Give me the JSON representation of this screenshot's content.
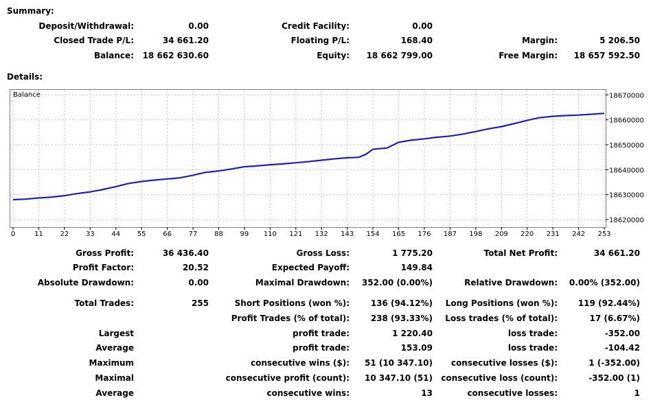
{
  "summary": {
    "title": "Summary:",
    "rows": [
      [
        {
          "label": "Deposit/Withdrawal:",
          "value": "0.00"
        },
        {
          "label": "Credit Facility:",
          "value": "0.00"
        },
        {
          "label": "",
          "value": ""
        }
      ],
      [
        {
          "label": "Closed Trade P/L:",
          "value": "34 661.20"
        },
        {
          "label": "Floating P/L:",
          "value": "168.40"
        },
        {
          "label": "Margin:",
          "value": "5 206.50"
        }
      ],
      [
        {
          "label": "Balance:",
          "value": "18 662 630.60"
        },
        {
          "label": "Equity:",
          "value": "18 662 799.00"
        },
        {
          "label": "Free Margin:",
          "value": "18 657 592.50"
        }
      ]
    ]
  },
  "details": {
    "title": "Details:"
  },
  "chart_data": {
    "type": "line",
    "title": "Balance",
    "xlabel": "",
    "ylabel": "",
    "xlim": [
      0,
      253
    ],
    "ylim": [
      18617000,
      18672000
    ],
    "x_ticks": [
      0,
      11,
      22,
      33,
      44,
      55,
      66,
      77,
      88,
      99,
      110,
      121,
      132,
      143,
      154,
      165,
      176,
      187,
      198,
      209,
      220,
      231,
      242,
      253
    ],
    "y_ticks": [
      18620000,
      18630000,
      18640000,
      18650000,
      18660000,
      18670000
    ],
    "grid": true,
    "line_color": "#1f1fb4",
    "series": [
      {
        "name": "Balance",
        "x": [
          0,
          5,
          11,
          16,
          22,
          27,
          33,
          38,
          44,
          49,
          55,
          60,
          66,
          71,
          77,
          82,
          88,
          93,
          99,
          104,
          110,
          115,
          121,
          126,
          132,
          137,
          143,
          148,
          151,
          154,
          160,
          165,
          170,
          176,
          181,
          187,
          192,
          198,
          203,
          209,
          214,
          220,
          225,
          231,
          236,
          242,
          247,
          253
        ],
        "y": [
          18628000,
          18628200,
          18628700,
          18629000,
          18629600,
          18630400,
          18631100,
          18632000,
          18633200,
          18634400,
          18635300,
          18635800,
          18636300,
          18636700,
          18637800,
          18638900,
          18639500,
          18640200,
          18641200,
          18641500,
          18642000,
          18642300,
          18642800,
          18643200,
          18643800,
          18644300,
          18644800,
          18645000,
          18646200,
          18648200,
          18648700,
          18651000,
          18651800,
          18652400,
          18653000,
          18653500,
          18654200,
          18655300,
          18656300,
          18657300,
          18658400,
          18659800,
          18660800,
          18661400,
          18661700,
          18661900,
          18662200,
          18662600
        ]
      }
    ]
  },
  "stats": {
    "row1": [
      {
        "label": "Gross Profit:",
        "value": "36 436.40"
      },
      {
        "label": "Gross Loss:",
        "value": "1 775.20"
      },
      {
        "label": "Total Net Profit:",
        "value": "34 661.20"
      }
    ],
    "row2": [
      {
        "label": "Profit Factor:",
        "value": "20.52"
      },
      {
        "label": "Expected Payoff:",
        "value": "149.84"
      },
      {
        "label": "",
        "value": ""
      }
    ],
    "row3": [
      {
        "label": "Absolute Drawdown:",
        "value": "0.00"
      },
      {
        "label": "Maximal Drawdown:",
        "value": "352.00 (0.00%)"
      },
      {
        "label": "Relative Drawdown:",
        "value": "0.00% (352.00)"
      }
    ],
    "row4": [
      {
        "label": "Total Trades:",
        "value": "255"
      },
      {
        "label": "Short Positions (won %):",
        "value": "136 (94.12%)"
      },
      {
        "label": "Long Positions (won %):",
        "value": "119 (92.44%)"
      }
    ],
    "row5": [
      {
        "label": "",
        "value": ""
      },
      {
        "label": "Profit Trades (% of total):",
        "value": "238 (93.33%)"
      },
      {
        "label": "Loss trades (% of total):",
        "value": "17 (6.67%)"
      }
    ],
    "group_rows": [
      {
        "prefix": "Largest",
        "mid_label": "profit trade:",
        "mid_value": "1 220.40",
        "right_label": "loss trade:",
        "right_value": "-352.00"
      },
      {
        "prefix": "Average",
        "mid_label": "profit trade:",
        "mid_value": "153.09",
        "right_label": "loss trade:",
        "right_value": "-104.42"
      },
      {
        "prefix": "Maximum",
        "mid_label": "consecutive wins ($):",
        "mid_value": "51 (10 347.10)",
        "right_label": "consecutive losses ($):",
        "right_value": "1 (-352.00)"
      },
      {
        "prefix": "Maximal",
        "mid_label": "consecutive profit (count):",
        "mid_value": "10 347.10 (51)",
        "right_label": "consecutive loss (count):",
        "right_value": "-352.00 (1)"
      },
      {
        "prefix": "Average",
        "mid_label": "consecutive wins:",
        "mid_value": "13",
        "right_label": "consecutive losses:",
        "right_value": "1"
      }
    ]
  }
}
